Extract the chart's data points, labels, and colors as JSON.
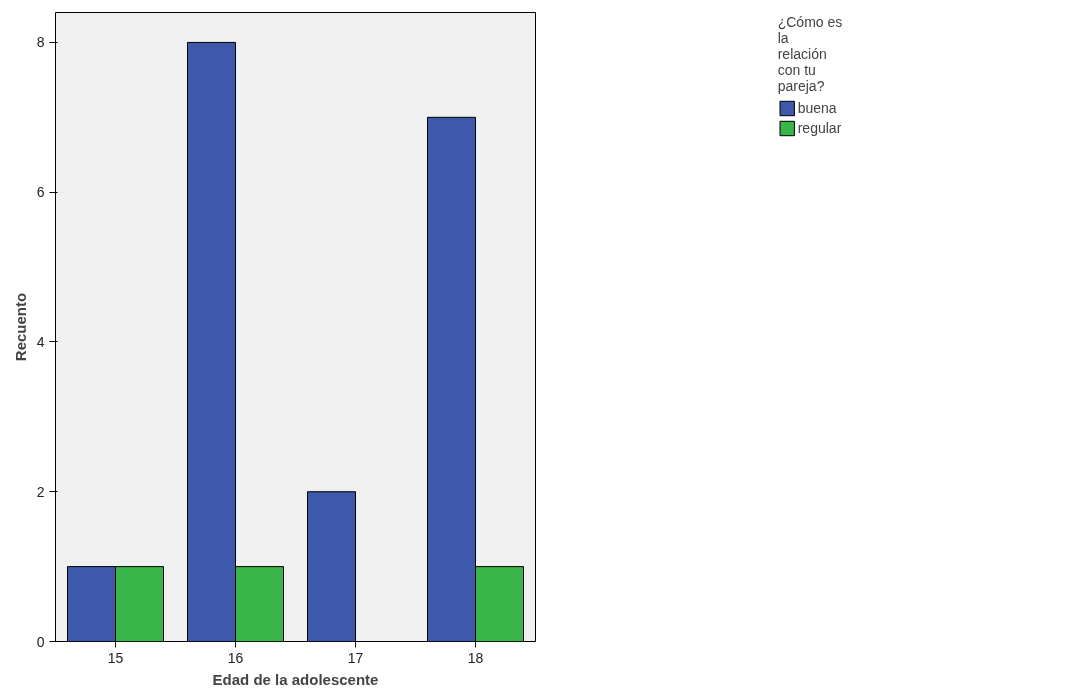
{
  "chart_data": {
    "type": "bar",
    "xlabel": "Edad de la adolescente",
    "ylabel": "Recuento",
    "legend_title": "¿Cómo es la relación con tu pareja?",
    "categories": [
      "15",
      "16",
      "17",
      "18"
    ],
    "series": [
      {
        "name": "buena",
        "color": "#3e58ac",
        "values": [
          1,
          8,
          2,
          7
        ]
      },
      {
        "name": "regular",
        "color": "#3ab54a",
        "values": [
          1,
          1,
          null,
          1
        ]
      }
    ],
    "ylim": [
      0,
      8.4
    ],
    "yticks": [
      0,
      2,
      4,
      6,
      8
    ],
    "grid": false,
    "legend": "top right"
  }
}
